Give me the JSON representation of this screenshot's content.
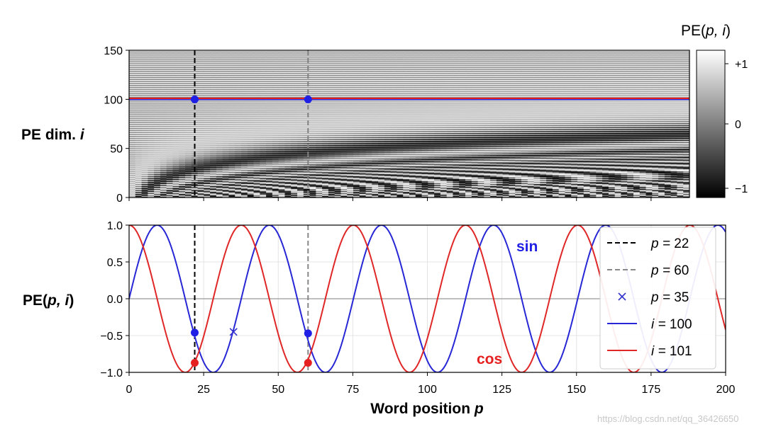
{
  "top_panel": {
    "ylabel_prefix": "PE dim. ",
    "ylabel_var": "i"
  },
  "bottom_panel": {
    "ylabel_prefix": "PE(",
    "ylabel_var": "p, i",
    "ylabel_suffix": ")",
    "xlabel_prefix": "Word position ",
    "xlabel_var": "p",
    "sin_label": "sin",
    "cos_label": "cos"
  },
  "colorbar": {
    "title_prefix": "PE(",
    "title_var": "p, i",
    "title_suffix": ")",
    "ticks": [
      {
        "value": 1,
        "label": "+1"
      },
      {
        "value": 0,
        "label": "0"
      },
      {
        "value": -1,
        "label": "−1"
      }
    ]
  },
  "watermark": "https://blog.csdn.net/qq_36426650",
  "chart_data": [
    {
      "type": "heatmap",
      "name": "positional-encoding-heatmap",
      "x_range": [
        0,
        200
      ],
      "y_range": [
        0,
        150
      ],
      "y_ticks": [
        0,
        50,
        100,
        150
      ],
      "y_tick_labels": [
        "0",
        "50",
        "100",
        "150"
      ],
      "x_tick_values": [
        0,
        25,
        50,
        75,
        100,
        125,
        150,
        175,
        200
      ],
      "color_range": [
        -1,
        1
      ],
      "colormap": "gray",
      "vertical_lines": [
        {
          "p": 22,
          "color": "#000000",
          "dash": "dashed"
        },
        {
          "p": 60,
          "color": "#808080",
          "dash": "dashed"
        }
      ],
      "horizontal_lines": [
        {
          "i": 100,
          "color": "#2020e0"
        },
        {
          "i": 101,
          "color": "#e02020"
        }
      ],
      "markers": [
        {
          "p": 22,
          "i": 100,
          "color": "#1f1fe6"
        },
        {
          "p": 60,
          "i": 100,
          "color": "#1f1fe6"
        }
      ]
    },
    {
      "type": "line",
      "name": "positional-encoding-curves",
      "x_range": [
        0,
        200
      ],
      "ylim": [
        -1.0,
        1.0
      ],
      "x_ticks": [
        0,
        25,
        50,
        75,
        100,
        125,
        150,
        175,
        200
      ],
      "x_tick_labels": [
        "0",
        "25",
        "50",
        "75",
        "100",
        "125",
        "150",
        "175",
        "200"
      ],
      "y_ticks": [
        1.0,
        0.5,
        0.0,
        -0.5,
        -1.0
      ],
      "y_tick_labels": [
        "1.0",
        "0.5",
        "0.0",
        "−0.5",
        "−1.0"
      ],
      "grid": true,
      "zero_line": true,
      "series": [
        {
          "name": "i = 100",
          "function": "sin",
          "period": 37.6,
          "color": "#2727d6",
          "legend_var": "i",
          "legend_value": "100"
        },
        {
          "name": "i = 101",
          "function": "cos",
          "period": 37.6,
          "color": "#e02727",
          "legend_var": "i",
          "legend_value": "101"
        }
      ],
      "vertical_lines": [
        {
          "p": 22,
          "color": "#000000",
          "dash": "dashed",
          "legend_var": "p",
          "legend_value": "22"
        },
        {
          "p": 60,
          "color": "#888888",
          "dash": "dashed",
          "legend_var": "p",
          "legend_value": "60"
        }
      ],
      "markers": [
        {
          "p": 22,
          "value": -0.46,
          "color": "#1f1fe6",
          "shape": "dot"
        },
        {
          "p": 22,
          "value": -0.87,
          "color": "#e62020",
          "shape": "dot"
        },
        {
          "p": 60,
          "value": -0.47,
          "color": "#1f1fe6",
          "shape": "dot"
        },
        {
          "p": 60,
          "value": -0.87,
          "color": "#e62020",
          "shape": "dot"
        },
        {
          "p": 35,
          "value": -0.45,
          "color": "#3333cc",
          "shape": "x",
          "legend_var": "p",
          "legend_value": "35"
        }
      ],
      "legend": "right"
    }
  ]
}
